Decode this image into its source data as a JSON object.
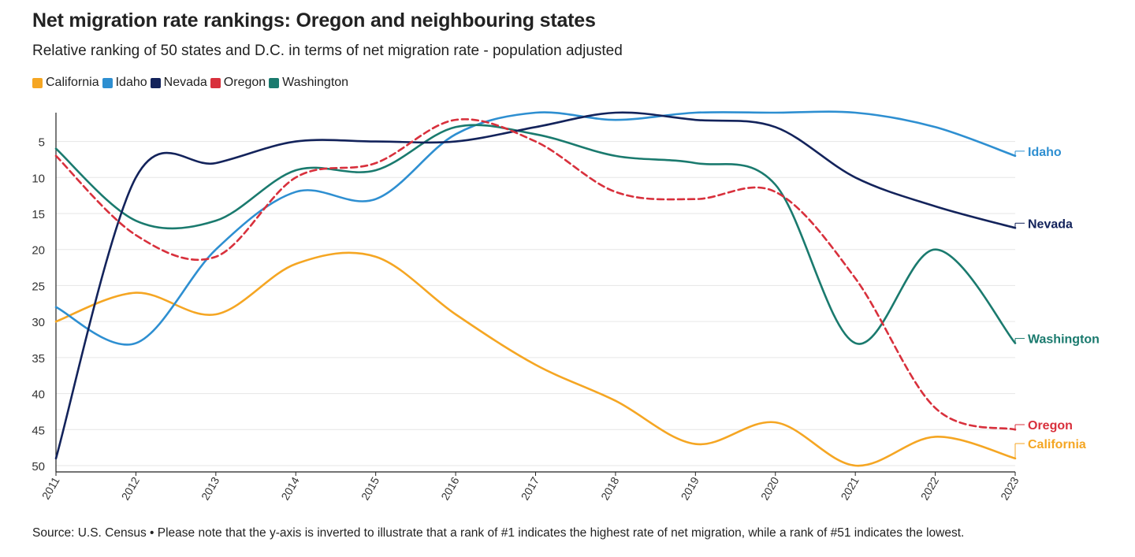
{
  "title": "Net migration rate rankings: Oregon and neighbouring states",
  "subtitle": "Relative ranking of 50 states and D.C. in terms of net migration rate - population adjusted",
  "source": "Source: U.S. Census • Please note that the y-axis is inverted to illustrate that a rank of #1 indicates the highest rate of net migration, while a rank of #51 indicates the lowest.",
  "chart_data": {
    "type": "line",
    "x": [
      "2011",
      "2012",
      "2013",
      "2014",
      "2015",
      "2016",
      "2017",
      "2018",
      "2019",
      "2020",
      "2021",
      "2022",
      "2023"
    ],
    "ylim": [
      1,
      50
    ],
    "y_inverted": true,
    "yticks": [
      5,
      10,
      15,
      20,
      25,
      30,
      35,
      40,
      45,
      50
    ],
    "grid": true,
    "legend_position": "top-left",
    "series": [
      {
        "name": "California",
        "color": "#f5a623",
        "dashed": false,
        "label": "California",
        "values": [
          30,
          26,
          29,
          22,
          21,
          29,
          36,
          41,
          47,
          44,
          50,
          46,
          49
        ]
      },
      {
        "name": "Idaho",
        "color": "#2e8fd1",
        "dashed": false,
        "label": "Idaho",
        "values": [
          28,
          33,
          20,
          12,
          13,
          4,
          1,
          2,
          1,
          1,
          1,
          3,
          7
        ]
      },
      {
        "name": "Nevada",
        "color": "#13235b",
        "dashed": false,
        "label": "Nevada",
        "values": [
          49,
          10,
          8,
          5,
          5,
          5,
          3,
          1,
          2,
          3,
          10,
          14,
          17
        ]
      },
      {
        "name": "Oregon",
        "color": "#d8303c",
        "dashed": true,
        "label": "Oregon",
        "values": [
          7,
          18,
          21,
          10,
          8,
          2,
          5,
          12,
          13,
          12,
          24,
          42,
          45
        ]
      },
      {
        "name": "Washington",
        "color": "#1a7a6e",
        "dashed": false,
        "label": "Washington",
        "values": [
          6,
          16,
          16,
          9,
          9,
          3,
          4,
          7,
          8,
          11,
          33,
          20,
          33
        ]
      }
    ]
  }
}
